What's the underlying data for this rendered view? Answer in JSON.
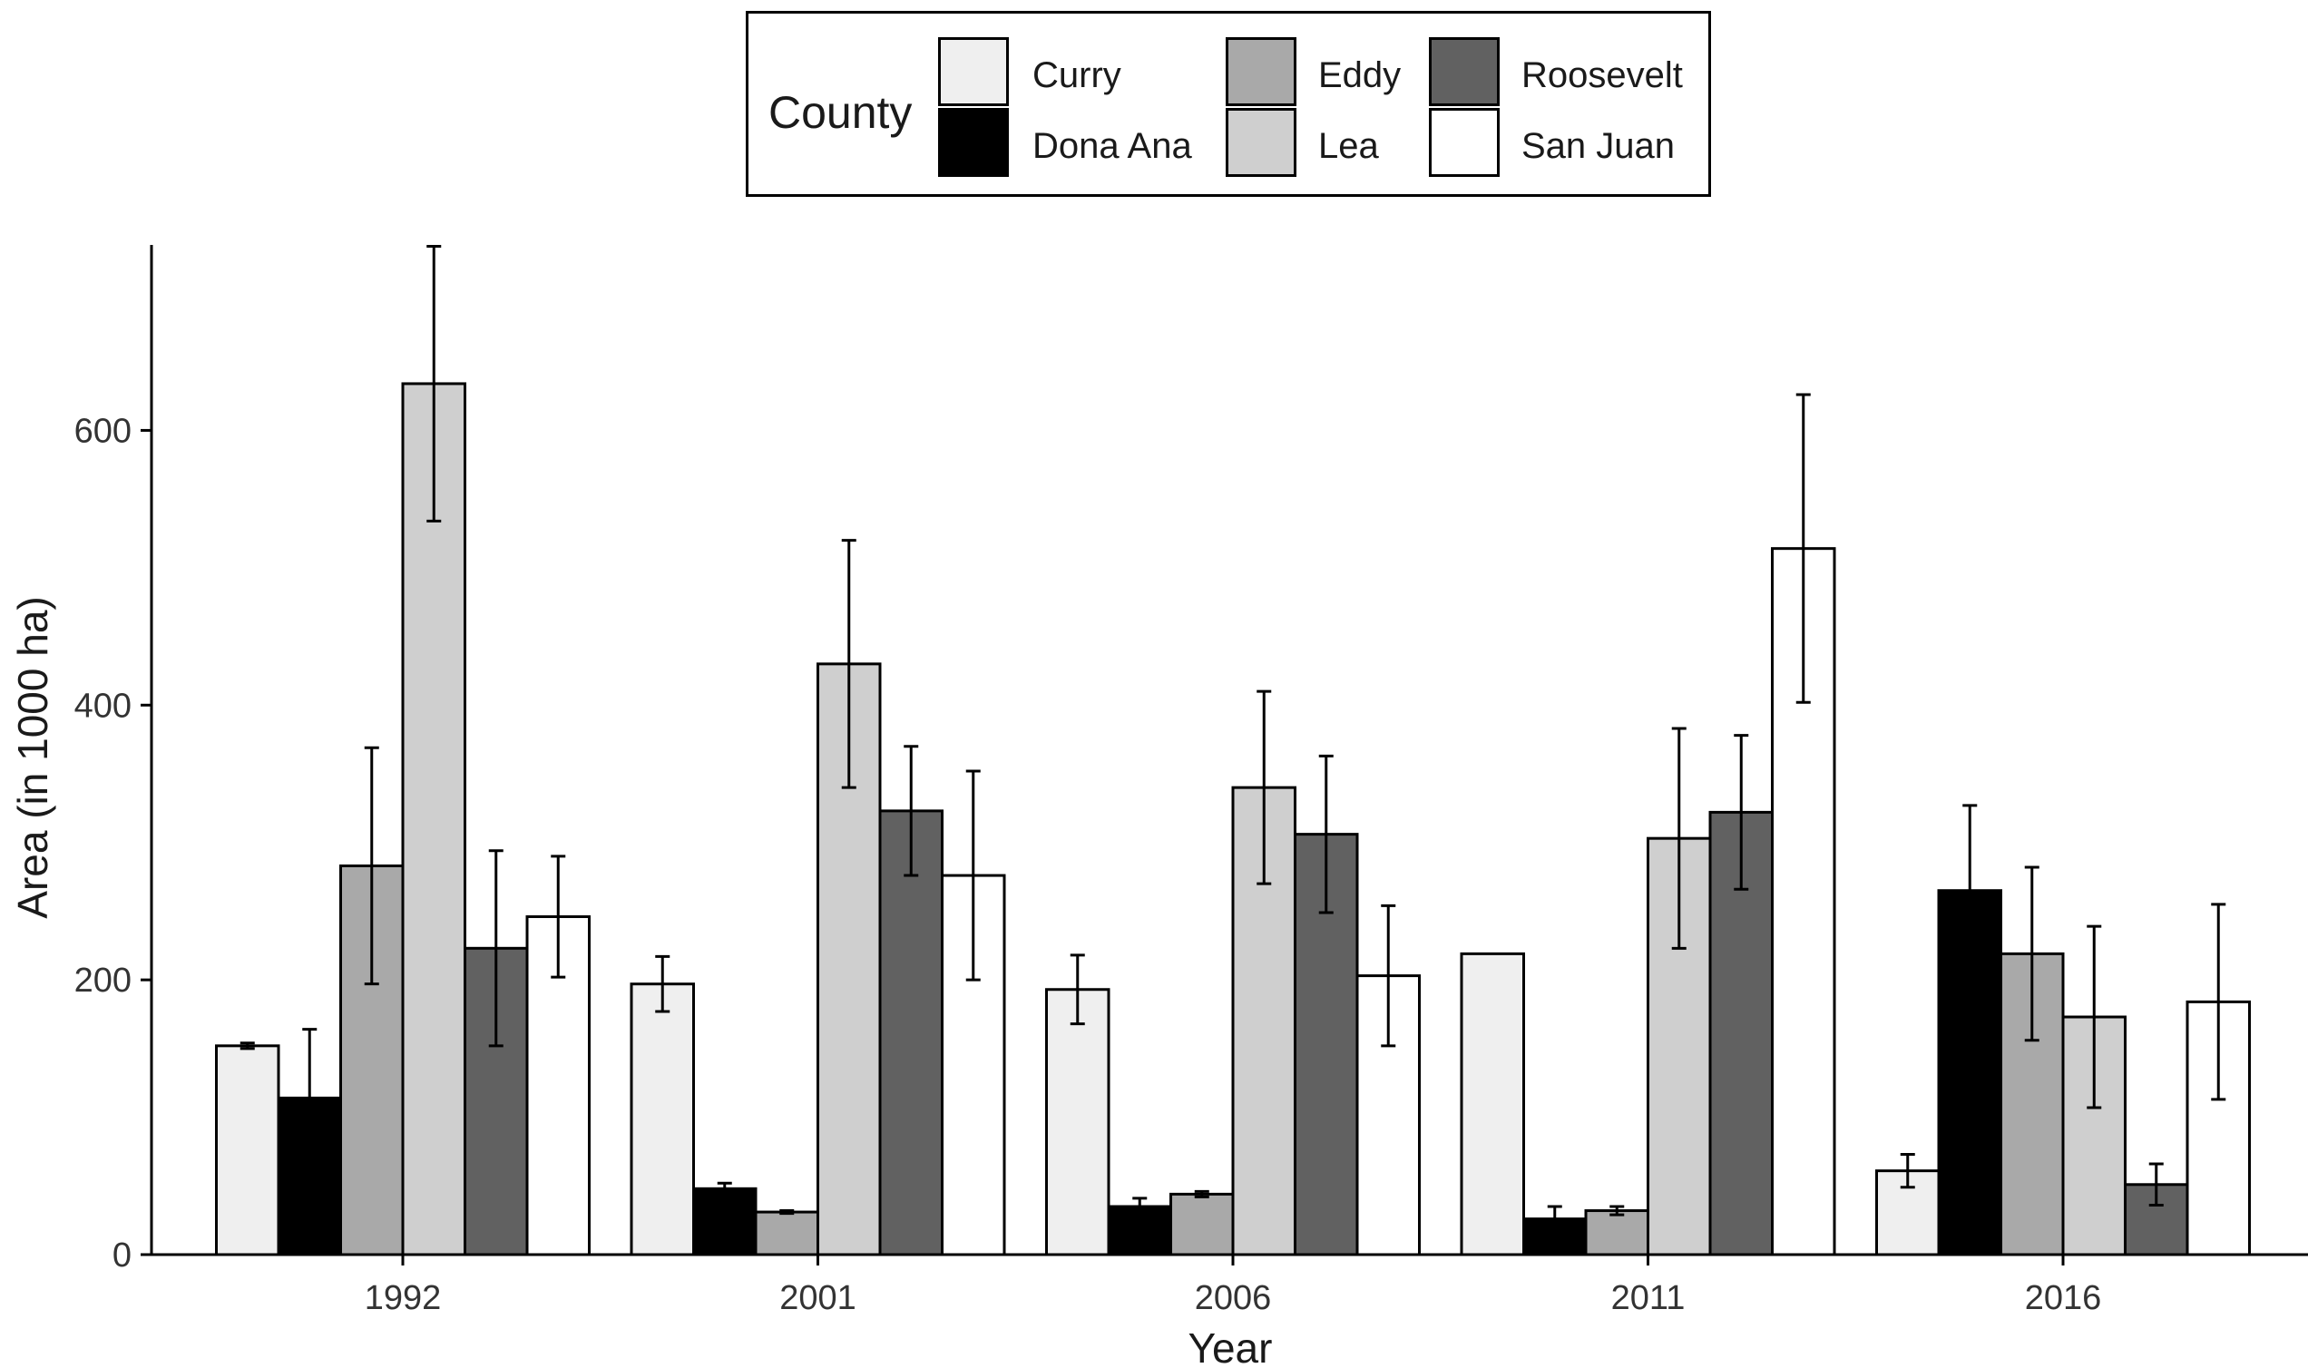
{
  "chart_data": {
    "type": "bar",
    "title": "",
    "xlabel": "Year",
    "ylabel": "Area (in 1000 ha)",
    "ylim": [
      0,
      735
    ],
    "yticks": [
      0,
      200,
      400,
      600
    ],
    "categories": [
      "1992",
      "2001",
      "2006",
      "2011",
      "2016"
    ],
    "legend": {
      "title": "County",
      "placement": "top-center"
    },
    "series": [
      {
        "name": "Curry",
        "color": "#efefef",
        "values": [
          152,
          197,
          193,
          219,
          61
        ],
        "errors": [
          2,
          20,
          25,
          0,
          12
        ]
      },
      {
        "name": "Dona Ana",
        "color": "#000000",
        "values": [
          114,
          48,
          35,
          26,
          265
        ],
        "errors": [
          50,
          4,
          6,
          9,
          62
        ]
      },
      {
        "name": "Eddy",
        "color": "#a9a9a9",
        "values": [
          283,
          31,
          44,
          32,
          219
        ],
        "errors": [
          86,
          1,
          2,
          3,
          63
        ]
      },
      {
        "name": "Lea",
        "color": "#cfcfcf",
        "values": [
          634,
          430,
          340,
          303,
          173
        ],
        "errors": [
          100,
          90,
          70,
          80,
          66
        ]
      },
      {
        "name": "Roosevelt",
        "color": "#616161",
        "values": [
          223,
          323,
          306,
          322,
          51
        ],
        "errors": [
          71,
          47,
          57,
          56,
          15
        ]
      },
      {
        "name": "San Juan",
        "color": "#ffffff",
        "values": [
          246,
          276,
          203,
          514,
          184
        ],
        "errors": [
          44,
          76,
          51,
          112,
          71
        ]
      }
    ]
  }
}
